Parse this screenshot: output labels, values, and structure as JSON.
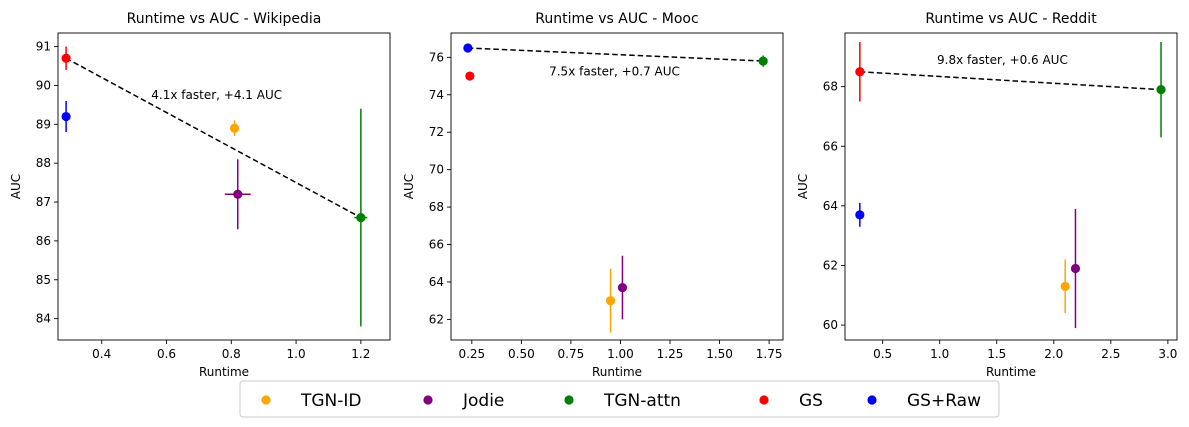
{
  "colors": {
    "TGN-ID": "#ffa500",
    "Jodie": "#800080",
    "TGN-attn": "#008000",
    "GS": "#ff0000",
    "GS+Raw": "#0000ff"
  },
  "legend": {
    "placement": "bottom-center",
    "entries": [
      "TGN-ID",
      "Jodie",
      "TGN-attn",
      "GS",
      "GS+Raw"
    ]
  },
  "chart_data": [
    {
      "type": "scatter",
      "title": "Runtime vs AUC - Wikipedia",
      "xlabel": "Runtime",
      "ylabel": "AUC",
      "xlim": [
        0.265,
        1.29
      ],
      "ylim": [
        83.45,
        91.35
      ],
      "xticks": [
        0.4,
        0.6,
        0.8,
        1.0,
        1.2
      ],
      "xtick_labels": [
        "0.4",
        "0.6",
        "0.8",
        "1.0",
        "1.2"
      ],
      "yticks": [
        84,
        85,
        86,
        87,
        88,
        89,
        90,
        91
      ],
      "ytick_labels": [
        "84",
        "85",
        "86",
        "87",
        "88",
        "89",
        "90",
        "91"
      ],
      "points": [
        {
          "series": "TGN-ID",
          "x": 0.81,
          "y": 88.9,
          "yerr": 0.2,
          "xerr": 0
        },
        {
          "series": "Jodie",
          "x": 0.82,
          "y": 87.2,
          "yerr": 0.9,
          "xerr": 0.04
        },
        {
          "series": "TGN-attn",
          "x": 1.2,
          "y": 86.6,
          "yerr": 2.8,
          "xerr": 0.02
        },
        {
          "series": "GS",
          "x": 0.29,
          "y": 90.7,
          "yerr": 0.3,
          "xerr": 0
        },
        {
          "series": "GS+Raw",
          "x": 0.29,
          "y": 89.2,
          "yerr": 0.4,
          "xerr": 0
        }
      ],
      "trend_line": {
        "from": [
          0.29,
          90.7
        ],
        "to": [
          1.2,
          86.6
        ]
      },
      "annotation": {
        "text": "4.1x faster, +4.1 AUC",
        "x": 0.755,
        "y": 89.75
      }
    },
    {
      "type": "scatter",
      "title": "Runtime vs AUC - Mooc",
      "xlabel": "Runtime",
      "ylabel": "AUC",
      "xlim": [
        0.145,
        1.82
      ],
      "ylim": [
        60.9,
        77.3
      ],
      "xticks": [
        0.25,
        0.5,
        0.75,
        1.0,
        1.25,
        1.5,
        1.75
      ],
      "xtick_labels": [
        "0.25",
        "0.50",
        "0.75",
        "1.00",
        "1.25",
        "1.50",
        "1.75"
      ],
      "yticks": [
        62,
        64,
        66,
        68,
        70,
        72,
        74,
        76
      ],
      "ytick_labels": [
        "62",
        "64",
        "66",
        "68",
        "70",
        "72",
        "74",
        "76"
      ],
      "points": [
        {
          "series": "TGN-ID",
          "x": 0.95,
          "y": 63.0,
          "yerr": 1.7,
          "xerr": 0
        },
        {
          "series": "Jodie",
          "x": 1.01,
          "y": 63.7,
          "yerr": 1.7,
          "xerr": 0.02
        },
        {
          "series": "TGN-attn",
          "x": 1.72,
          "y": 75.8,
          "yerr": 0.3,
          "xerr": 0.02
        },
        {
          "series": "GS",
          "x": 0.24,
          "y": 75.0,
          "yerr": 0,
          "xerr": 0
        },
        {
          "series": "GS+Raw",
          "x": 0.23,
          "y": 76.5,
          "yerr": 0.2,
          "xerr": 0
        }
      ],
      "trend_line": {
        "from": [
          0.23,
          76.5
        ],
        "to": [
          1.72,
          75.8
        ]
      },
      "annotation": {
        "text": "7.5x faster, +0.7 AUC",
        "x": 0.97,
        "y": 75.25
      }
    },
    {
      "type": "scatter",
      "title": "Runtime vs AUC - Reddit",
      "xlabel": "Runtime",
      "ylabel": "AUC",
      "xlim": [
        0.17,
        3.08
      ],
      "ylim": [
        59.5,
        69.8
      ],
      "xticks": [
        0.5,
        1.0,
        1.5,
        2.0,
        2.5,
        3.0
      ],
      "xtick_labels": [
        "0.5",
        "1.0",
        "1.5",
        "2.0",
        "2.5",
        "3.0"
      ],
      "yticks": [
        60,
        62,
        64,
        66,
        68
      ],
      "ytick_labels": [
        "60",
        "62",
        "64",
        "66",
        "68"
      ],
      "points": [
        {
          "series": "TGN-ID",
          "x": 2.1,
          "y": 61.3,
          "yerr": 0.9,
          "xerr": 0
        },
        {
          "series": "Jodie",
          "x": 2.19,
          "y": 61.9,
          "yerr": 2.0,
          "xerr": 0
        },
        {
          "series": "TGN-attn",
          "x": 2.94,
          "y": 67.9,
          "yerr": 1.6,
          "xerr": 0
        },
        {
          "series": "GS",
          "x": 0.3,
          "y": 68.5,
          "yerr": 1.0,
          "xerr": 0
        },
        {
          "series": "GS+Raw",
          "x": 0.3,
          "y": 63.7,
          "yerr": 0.4,
          "xerr": 0
        }
      ],
      "trend_line": {
        "from": [
          0.3,
          68.5
        ],
        "to": [
          2.94,
          67.9
        ]
      },
      "annotation": {
        "text": "9.8x faster, +0.6 AUC",
        "x": 1.55,
        "y": 68.9
      }
    }
  ]
}
